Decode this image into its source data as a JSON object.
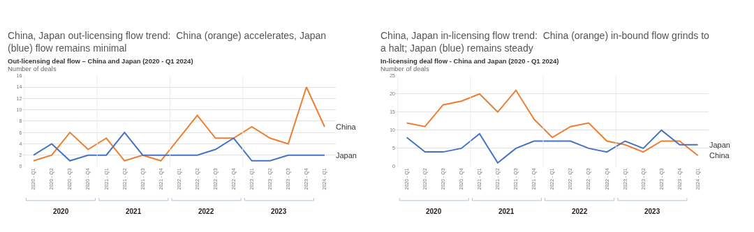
{
  "chart_data": [
    {
      "type": "line",
      "title": "China, Japan out-licensing flow trend:  China (orange) accelerates, Japan (blue) flow remains minimal",
      "subtitle": "Out-licensing deal flow – China and Japan (2020 - Q1 2024)",
      "ylabel": "Number of deals",
      "categories": [
        "2020 - Q1",
        "2020 - Q2",
        "2020 - Q3",
        "2020 - Q4",
        "2021 - Q1",
        "2021 - Q2",
        "2021 - Q3",
        "2021 - Q4",
        "2022 - Q1",
        "2022 - Q2",
        "2022 - Q3",
        "2022 - Q4",
        "2023 - Q1",
        "2023 - Q2",
        "2023 - Q3",
        "2023 - Q4",
        "2024 - Q1"
      ],
      "series": [
        {
          "name": "China",
          "color": "#ed7d31",
          "values": [
            1,
            2,
            6,
            3,
            5,
            1,
            2,
            1,
            5,
            9,
            5,
            5,
            7,
            5,
            4,
            14,
            7
          ]
        },
        {
          "name": "Japan",
          "color": "#4472c4",
          "values": [
            2,
            4,
            1,
            2,
            2,
            6,
            2,
            2,
            2,
            2,
            3,
            5,
            1,
            1,
            2,
            2,
            2
          ]
        }
      ],
      "ylim": [
        0,
        16
      ],
      "yticks": [
        0,
        2,
        4,
        6,
        8,
        10,
        12,
        14,
        16
      ],
      "grid": "y",
      "marker": "none",
      "line_style": "solid",
      "annotations": [
        "2020",
        "2021",
        "2022",
        "2023"
      ]
    },
    {
      "type": "line",
      "title": "China, Japan in-licensing flow trend:  China (orange) in-bound flow grinds to a halt; Japan (blue) remains steady",
      "subtitle": "In-licensing deal flow - China and Japan (2020 - Q1 2024)",
      "ylabel": "Number of deals",
      "categories": [
        "2020 - Q1",
        "2020 - Q2",
        "2020 - Q3",
        "2020 - Q4",
        "2021 - Q1",
        "2021 - Q2",
        "2021 - Q3",
        "2021 - Q4",
        "2022 - Q1",
        "2022 - Q2",
        "2022 - Q3",
        "2022 - Q4",
        "2023 - Q1",
        "2023 - Q2",
        "2023 - Q3",
        "2023 - Q4",
        "2024 - Q1"
      ],
      "series": [
        {
          "name": "China",
          "color": "#ed7d31",
          "values": [
            12,
            11,
            17,
            18,
            20,
            15,
            21,
            13,
            8,
            11,
            12,
            7,
            6,
            4,
            7,
            7,
            3
          ]
        },
        {
          "name": "Japan",
          "color": "#4472c4",
          "values": [
            8,
            4,
            4,
            5,
            9,
            1,
            5,
            7,
            7,
            7,
            5,
            4,
            7,
            5,
            10,
            6,
            6
          ]
        }
      ],
      "ylim": [
        0,
        25
      ],
      "yticks": [
        0,
        5,
        10,
        15,
        20,
        25
      ],
      "grid": "y",
      "marker": "none",
      "line_style": "solid",
      "annotations": [
        "2020",
        "2021",
        "2022",
        "2023"
      ]
    }
  ]
}
